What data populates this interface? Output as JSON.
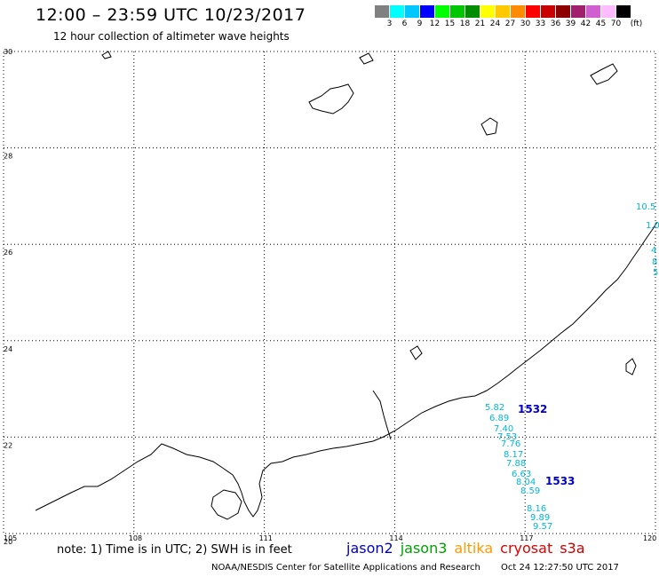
{
  "header": {
    "title": "12:00 – 23:59 UTC 10/23/2017",
    "subtitle": "12 hour collection of altimeter wave heights"
  },
  "colorbar": {
    "colors": [
      "#808080",
      "#00ffff",
      "#00c8ff",
      "#0000ff",
      "#00ff00",
      "#00c800",
      "#008c00",
      "#ffff00",
      "#ffc800",
      "#ff8c00",
      "#ff0000",
      "#c80000",
      "#8c0000",
      "#a0206e",
      "#d060d0",
      "#ffbcff",
      "#000000"
    ],
    "labels": [
      "3",
      "6",
      "9",
      "12",
      "15",
      "18",
      "21",
      "24",
      "27",
      "30",
      "33",
      "36",
      "39",
      "42",
      "45",
      "70",
      "(ft)"
    ]
  },
  "axes": {
    "lat_labels": [
      "30",
      "28",
      "26",
      "24",
      "22",
      "20"
    ],
    "lon_labels": [
      "105",
      "108",
      "111",
      "114",
      "117",
      "120"
    ]
  },
  "passes": [
    {
      "id": "1532",
      "color": "#0000c8"
    },
    {
      "id": "1533",
      "color": "#0000c8"
    }
  ],
  "points": [
    {
      "label": "10.5",
      "color": "#0000c8"
    },
    {
      "label": "1.0",
      "color": "#00b8d8"
    },
    {
      "label": "4",
      "color": "#00b8d8"
    },
    {
      "label": "8",
      "color": "#00b8d8"
    },
    {
      "label": "5",
      "color": "#00b8d8"
    },
    {
      "label": "5.82",
      "color": "#00b8d8"
    },
    {
      "label": "6.89",
      "color": "#00b8d8"
    },
    {
      "label": "7.40",
      "color": "#00b8d8"
    },
    {
      "label": "7.53",
      "color": "#00b8d8"
    },
    {
      "label": "7.76",
      "color": "#00b8d8"
    },
    {
      "label": "8.17",
      "color": "#00b8d8"
    },
    {
      "label": "7.88",
      "color": "#00b8d8"
    },
    {
      "label": "6.63",
      "color": "#00b8d8"
    },
    {
      "label": "8.04",
      "color": "#00b8d8"
    },
    {
      "label": "8.59",
      "color": "#00b8d8"
    },
    {
      "label": "8.16",
      "color": "#00b8d8"
    },
    {
      "label": "9.89",
      "color": "#0000c8"
    },
    {
      "label": "9.57",
      "color": "#0000c8"
    }
  ],
  "footer": {
    "note": "note:  1) Time is in UTC;  2) SWH is in feet",
    "legend": [
      {
        "label": "jason2",
        "color": "#0000c8"
      },
      {
        "label": "jason3",
        "color": "#00a000"
      },
      {
        "label": "altika",
        "color": "#ff9900"
      },
      {
        "label": "cryosat",
        "color": "#e00000"
      },
      {
        "label": "s3a",
        "color": "#c80000"
      }
    ],
    "credit": "NOAA/NESDIS Center for Satellite Applications and Research",
    "timestamp": "Oct 24 12:27:50 UTC 2017"
  }
}
